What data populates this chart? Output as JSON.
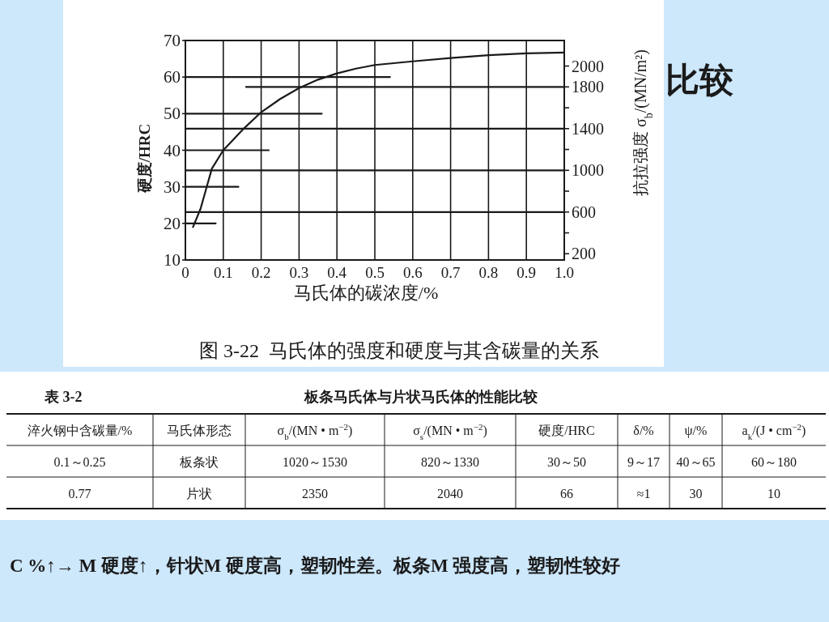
{
  "chart_data": [
    {
      "type": "other",
      "title": "比较"
    },
    {
      "type": "line",
      "title": "图 3-22  马氏体的强度和硬度与其含碳量的关系",
      "xlabel": "马氏体的碳浓度/%",
      "ylabel": "硬度/HRC",
      "y2label": "抗拉强度 σ$_{b}$/(MN/m²)",
      "xlim": [
        0,
        1
      ],
      "xticks": [
        0,
        0.1,
        0.2,
        0.3,
        0.4,
        0.5,
        0.6,
        0.7,
        0.8,
        0.9,
        {
          "value": 1,
          "label": "1.0"
        }
      ],
      "ylim": [
        10,
        70
      ],
      "yticks": [
        10,
        20,
        30,
        40,
        50,
        60,
        70
      ],
      "y2lim": [
        140,
        2245
      ],
      "y2ticks": [
        200,
        {
          "value": 400,
          "label": null
        },
        600,
        {
          "value": 800,
          "label": null
        },
        1000,
        {
          "value": 1200,
          "label": null
        },
        1400,
        {
          "value": 1600,
          "label": null
        },
        1800,
        2000
      ],
      "grid": "x",
      "line_style": "solid",
      "series": [
        {
          "color": "#1a1a1a",
          "x": [
            0.02,
            0.04,
            0.07,
            0.1,
            0.15,
            0.2,
            0.25,
            0.3,
            0.35,
            0.4,
            0.45,
            0.5,
            0.6,
            0.7,
            0.8,
            0.9,
            1
          ],
          "values": [
            19,
            24,
            35,
            40,
            45.5,
            50.4,
            54,
            57,
            59.3,
            61,
            62.3,
            63.3,
            64.3,
            65.2,
            66,
            66.5,
            66.7
          ]
        },
        {
          "color": "#1a1a1a",
          "x": [
            0,
            0.08
          ],
          "values": [
            20,
            20
          ]
        },
        {
          "color": "#1a1a1a",
          "x": [
            0,
            0.14
          ],
          "values": [
            30,
            30
          ]
        },
        {
          "color": "#1a1a1a",
          "x": [
            0,
            0.22
          ],
          "values": [
            40,
            40
          ]
        },
        {
          "color": "#1a1a1a",
          "x": [
            0,
            0.36
          ],
          "values": [
            50,
            50
          ]
        },
        {
          "color": "#1a1a1a",
          "x": [
            0,
            0.54
          ],
          "values": [
            60,
            60
          ]
        },
        {
          "color": "#1a1a1a",
          "axis": "y2",
          "x": [
            0,
            1
          ],
          "values": [
            600,
            600
          ]
        },
        {
          "color": "#1a1a1a",
          "axis": "y2",
          "x": [
            0,
            1
          ],
          "values": [
            1000,
            1000
          ]
        },
        {
          "color": "#1a1a1a",
          "axis": "y2",
          "x": [
            0,
            1
          ],
          "values": [
            1400,
            1400
          ]
        },
        {
          "color": "#1a1a1a",
          "axis": "y2",
          "x": [
            0.16,
            1
          ],
          "values": [
            1800,
            1800
          ]
        }
      ]
    },
    {
      "type": "other",
      "title": "板条马氏体与片状马氏体的性能比较",
      "annotations": [
        "表 3-2",
        "淬火钢中含碳量/%",
        "马氏体形态",
        "σ$_{b}$/(MN • m$^{−2}$)",
        "σ$_{s}$/(MN • m$^{−2}$)",
        "硬度/HRC",
        "δ/%",
        "ψ/%",
        "a$_{k}$/(J • cm$^{−2}$)",
        "0.1～0.25",
        "板条状",
        "1020～1530",
        "820～1330",
        "30～50",
        "9～17",
        "40～65",
        "60～180",
        "0.77",
        "片状",
        "2350",
        "2040",
        "66",
        "≈1",
        "30",
        "10"
      ]
    },
    {
      "type": "other",
      "annotations": [
        "C %↑→ M 硬度↑，针状M 硬度高，塑韧性差。板条M 强度高，塑韧性较好"
      ]
    }
  ]
}
